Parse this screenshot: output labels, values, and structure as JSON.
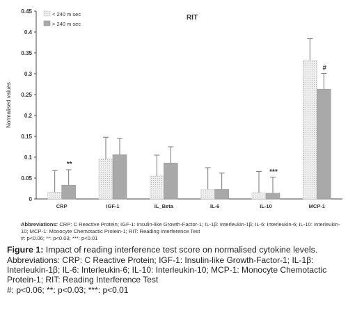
{
  "chart_data": {
    "type": "bar",
    "title": "RIT",
    "ylabel": "Normalised values",
    "xlabel": "",
    "ylim": [
      0,
      0.45
    ],
    "yticks": [
      0,
      0.05,
      0.1,
      0.15,
      0.2,
      0.25,
      0.3,
      0.35,
      0.4,
      0.45
    ],
    "ytick_labels": [
      "0",
      "0.05",
      "0.1",
      "0.15",
      "0.2",
      "0.25",
      "0.3",
      "0.35",
      "0.4",
      "0.45"
    ],
    "categories": [
      "CRP",
      "IGF-1",
      "IL_Beta",
      "IL-6",
      "IL-10",
      "MCP-1"
    ],
    "series": [
      {
        "name": "< 240  m sec",
        "color": "#e8e8e8",
        "pattern": "dotted",
        "values": [
          0.016,
          0.096,
          0.055,
          0.023,
          0.015,
          0.333
        ],
        "errors": [
          0.052,
          0.052,
          0.05,
          0.052,
          0.051,
          0.051
        ]
      },
      {
        "name": "> 240 m sec",
        "color": "#a9a9a9",
        "pattern": "solid",
        "values": [
          0.033,
          0.106,
          0.086,
          0.023,
          0.014,
          0.263
        ],
        "errors": [
          0.037,
          0.039,
          0.039,
          0.039,
          0.038,
          0.038
        ]
      }
    ],
    "annotations": [
      {
        "category": "CRP",
        "text": "**"
      },
      {
        "category": "IL-10",
        "text": "***"
      },
      {
        "category": "MCP-1",
        "text": "#"
      }
    ],
    "legend_position": "top-left",
    "grid": false
  },
  "small_caption": {
    "label": "Abbreviations:",
    "text": " CRP: C Reactive Protein; IGF-1: Insulin-like Growth-Factor-1; IL-1β: Interleukin-1β; IL-6: Interleukin-6; IL-10: Interleukin-10; MCP-1: Monocyte Chemotactic Protein-1; RIT: Reading Interference Test",
    "significance": "#: p<0.06; **: p<0.03; ***: p<0.01"
  },
  "figure_caption": {
    "label": "Figure 1:",
    "title": " Impact of reading interference test score on normalised cytokine levels.",
    "abbreviations": "Abbreviations: CRP: C Reactive Protein; IGF-1: Insulin-like Growth-Factor-1; IL-1β: Interleukin-1β; IL-6: Interleukin-6; IL-10: Interleukin-10; MCP-1: Monocyte Chemotactic Protein-1; RIT: Reading Interference Test",
    "significance": "#: p<0.06; **: p<0.03; ***: p<0.01"
  }
}
